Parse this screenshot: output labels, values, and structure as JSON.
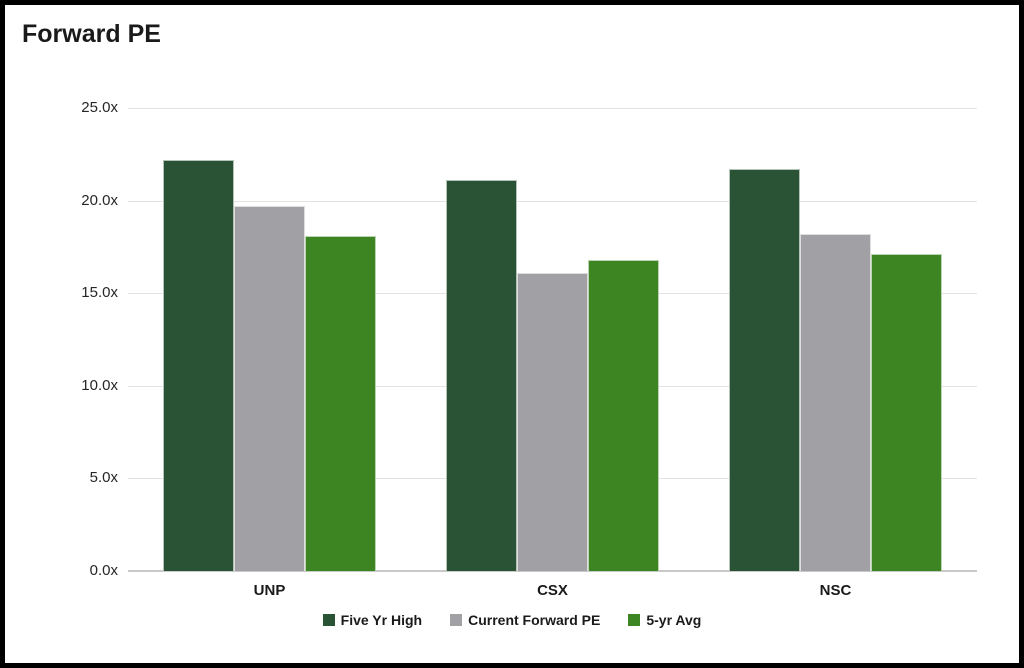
{
  "chart_data": {
    "type": "bar",
    "title": "Forward PE",
    "categories": [
      "UNP",
      "CSX",
      "NSC"
    ],
    "series": [
      {
        "name": "Five Yr High",
        "color": "#2A5234",
        "values": [
          22.2,
          21.1,
          21.7
        ]
      },
      {
        "name": "Current Forward PE",
        "color": "#A0A0A5",
        "values": [
          19.7,
          16.1,
          18.2
        ]
      },
      {
        "name": "5-yr Avg",
        "color": "#3D8522",
        "values": [
          18.1,
          16.8,
          17.1
        ]
      }
    ],
    "y_axis": {
      "tick_values": [
        0,
        5,
        10,
        15,
        20,
        25
      ],
      "tick_labels": [
        "0.0x",
        "5.0x",
        "10.0x",
        "15.0x",
        "20.0x",
        "25.0x"
      ],
      "min": 0,
      "max": 25,
      "suffix": "x"
    },
    "xlabel": "",
    "ylabel": "",
    "grid": true,
    "legend_position": "bottom"
  },
  "colors": {
    "frame_border": "#000000",
    "background": "#ffffff",
    "gridline": "#e3e3e3",
    "axis_line": "#c9c9c9",
    "title_text": "#1a1a1a",
    "tick_text": "#262626"
  }
}
